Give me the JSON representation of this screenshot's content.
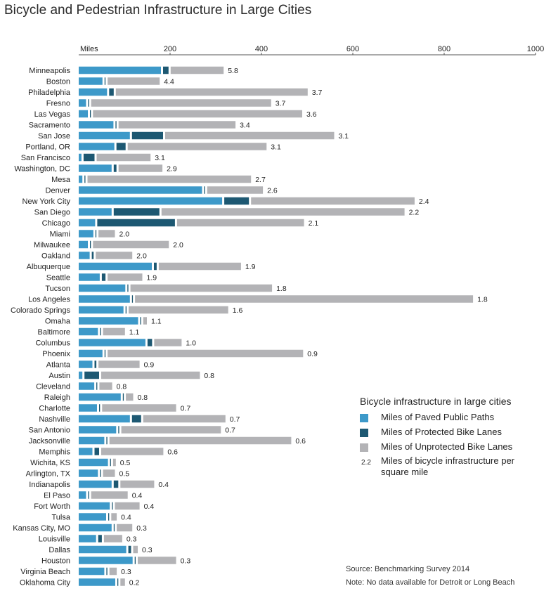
{
  "title": "Bicycle and Pedestrian Infrastructure in Large Cities",
  "colors": {
    "paved": "#3d99c9",
    "protected": "#1d5872",
    "unprotected": "#b3b3b6"
  },
  "legend": {
    "title": "Bicycle infrastructure in large cities",
    "paved": "Miles of Paved Public Paths",
    "protected": "Miles of Protected Bike Lanes",
    "unprotected": "Miles of Unprotected Bike Lanes",
    "sample_value": "2.2",
    "density_label": "Miles of bicycle infrastructure per square mile"
  },
  "source": "Source: Benchmarking Survey 2014",
  "note": "Note: No data available for Detroit or Long Beach",
  "chart_data": {
    "type": "bar",
    "stacked": true,
    "orientation": "horizontal",
    "axis_label": "Miles",
    "xlim": [
      0,
      1000
    ],
    "ticks": [
      200,
      400,
      600,
      800,
      1000
    ],
    "series_names": [
      "Miles of Paved Public Paths",
      "Miles of Protected Bike Lanes",
      "Miles of Unprotected Bike Lanes"
    ],
    "rows": [
      {
        "city": "Minneapolis",
        "paved": 180,
        "protected": 12,
        "unprotected": 116,
        "density": "5.8"
      },
      {
        "city": "Boston",
        "paved": 52,
        "protected": 2,
        "unprotected": 114,
        "density": "4.4"
      },
      {
        "city": "Philadelphia",
        "paved": 62,
        "protected": 10,
        "unprotected": 420,
        "density": "3.7"
      },
      {
        "city": "Fresno",
        "paved": 16,
        "protected": 2,
        "unprotected": 394,
        "density": "3.7"
      },
      {
        "city": "Las Vegas",
        "paved": 20,
        "protected": 2,
        "unprotected": 458,
        "density": "3.6"
      },
      {
        "city": "Sacramento",
        "paved": 76,
        "protected": 2,
        "unprotected": 256,
        "density": "3.4"
      },
      {
        "city": "San Jose",
        "paved": 112,
        "protected": 68,
        "unprotected": 370,
        "density": "3.1"
      },
      {
        "city": "Portland, OR",
        "paved": 78,
        "protected": 20,
        "unprotected": 304,
        "density": "3.1"
      },
      {
        "city": "San Francisco",
        "paved": 6,
        "protected": 24,
        "unprotected": 118,
        "density": "3.1"
      },
      {
        "city": "Washington, DC",
        "paved": 72,
        "protected": 6,
        "unprotected": 96,
        "density": "2.9"
      },
      {
        "city": "Mesa",
        "paved": 8,
        "protected": 2,
        "unprotected": 358,
        "density": "2.7"
      },
      {
        "city": "Denver",
        "paved": 270,
        "protected": 2,
        "unprotected": 122,
        "density": "2.6"
      },
      {
        "city": "New York City",
        "paved": 314,
        "protected": 54,
        "unprotected": 358,
        "density": "2.4"
      },
      {
        "city": "San Diego",
        "paved": 72,
        "protected": 100,
        "unprotected": 532,
        "density": "2.2"
      },
      {
        "city": "Chicago",
        "paved": 36,
        "protected": 170,
        "unprotected": 278,
        "density": "2.1"
      },
      {
        "city": "Miami",
        "paved": 32,
        "protected": 2,
        "unprotected": 36,
        "density": "2.0"
      },
      {
        "city": "Milwaukee",
        "paved": 20,
        "protected": 2,
        "unprotected": 166,
        "density": "2.0"
      },
      {
        "city": "Oakland",
        "paved": 24,
        "protected": 4,
        "unprotected": 80,
        "density": "2.0"
      },
      {
        "city": "Albuquerque",
        "paved": 160,
        "protected": 6,
        "unprotected": 180,
        "density": "1.9"
      },
      {
        "city": "Seattle",
        "paved": 46,
        "protected": 8,
        "unprotected": 76,
        "density": "1.9"
      },
      {
        "city": "Tucson",
        "paved": 102,
        "protected": 2,
        "unprotected": 310,
        "density": "1.8"
      },
      {
        "city": "Los Angeles",
        "paved": 112,
        "protected": 2,
        "unprotected": 740,
        "density": "1.8"
      },
      {
        "city": "Colorado Springs",
        "paved": 98,
        "protected": 2,
        "unprotected": 218,
        "density": "1.6"
      },
      {
        "city": "Omaha",
        "paved": 130,
        "protected": 2,
        "unprotected": 8,
        "density": "1.1"
      },
      {
        "city": "Baltimore",
        "paved": 42,
        "protected": 2,
        "unprotected": 48,
        "density": "1.1"
      },
      {
        "city": "Columbus",
        "paved": 146,
        "protected": 10,
        "unprotected": 60,
        "density": "1.0"
      },
      {
        "city": "Phoenix",
        "paved": 52,
        "protected": 2,
        "unprotected": 428,
        "density": "0.9"
      },
      {
        "city": "Atlanta",
        "paved": 30,
        "protected": 4,
        "unprotected": 90,
        "density": "0.9"
      },
      {
        "city": "Austin",
        "paved": 8,
        "protected": 32,
        "unprotected": 216,
        "density": "0.8"
      },
      {
        "city": "Cleveland",
        "paved": 34,
        "protected": 2,
        "unprotected": 28,
        "density": "0.8"
      },
      {
        "city": "Raleigh",
        "paved": 92,
        "protected": 2,
        "unprotected": 16,
        "density": "0.8"
      },
      {
        "city": "Charlotte",
        "paved": 40,
        "protected": 2,
        "unprotected": 162,
        "density": "0.7"
      },
      {
        "city": "Nashville",
        "paved": 112,
        "protected": 20,
        "unprotected": 180,
        "density": "0.7"
      },
      {
        "city": "San Antonio",
        "paved": 82,
        "protected": 2,
        "unprotected": 218,
        "density": "0.7"
      },
      {
        "city": "Jacksonville",
        "paved": 56,
        "protected": 2,
        "unprotected": 398,
        "density": "0.6"
      },
      {
        "city": "Memphis",
        "paved": 30,
        "protected": 10,
        "unprotected": 136,
        "density": "0.6"
      },
      {
        "city": "Wichita, KS",
        "paved": 64,
        "protected": 2,
        "unprotected": 6,
        "density": "0.5"
      },
      {
        "city": "Arlington, TX",
        "paved": 42,
        "protected": 2,
        "unprotected": 26,
        "density": "0.5"
      },
      {
        "city": "Indianapolis",
        "paved": 72,
        "protected": 10,
        "unprotected": 74,
        "density": "0.4"
      },
      {
        "city": "El Paso",
        "paved": 16,
        "protected": 2,
        "unprotected": 80,
        "density": "0.4"
      },
      {
        "city": "Fort Worth",
        "paved": 68,
        "protected": 2,
        "unprotected": 54,
        "density": "0.4"
      },
      {
        "city": "Tulsa",
        "paved": 60,
        "protected": 2,
        "unprotected": 12,
        "density": "0.4"
      },
      {
        "city": "Kansas City, MO",
        "paved": 72,
        "protected": 2,
        "unprotected": 34,
        "density": "0.3"
      },
      {
        "city": "Louisville",
        "paved": 38,
        "protected": 8,
        "unprotected": 40,
        "density": "0.3"
      },
      {
        "city": "Dallas",
        "paved": 104,
        "protected": 6,
        "unprotected": 10,
        "density": "0.3"
      },
      {
        "city": "Houston",
        "paved": 118,
        "protected": 2,
        "unprotected": 84,
        "density": "0.3"
      },
      {
        "city": "Virginia Beach",
        "paved": 56,
        "protected": 2,
        "unprotected": 16,
        "density": "0.3"
      },
      {
        "city": "Oklahoma City",
        "paved": 80,
        "protected": 2,
        "unprotected": 10,
        "density": "0.2"
      }
    ]
  }
}
